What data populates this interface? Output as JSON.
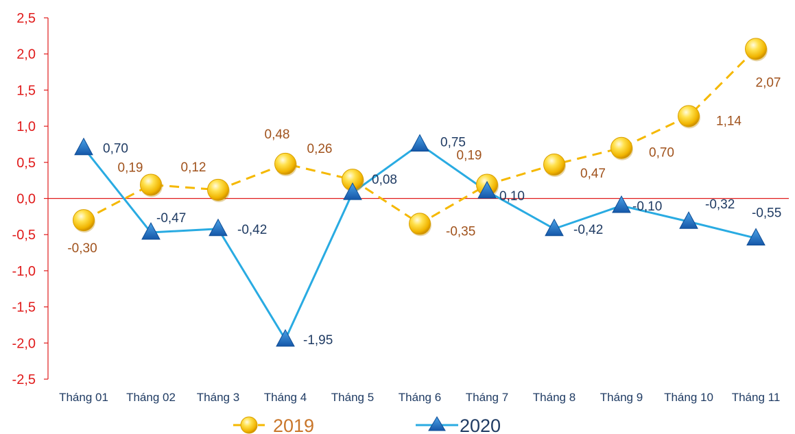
{
  "chart_data": {
    "type": "line",
    "title": "",
    "xlabel": "",
    "ylabel": "",
    "categories": [
      "Tháng 01",
      "Tháng 02",
      "Tháng 3",
      "Tháng 4",
      "Tháng 5",
      "Tháng 6",
      "Tháng 7",
      "Tháng 8",
      "Tháng 9",
      "Tháng 10",
      "Tháng 11"
    ],
    "ylim": [
      -2.5,
      2.5
    ],
    "yticks": [
      "2,5",
      "2,0",
      "1,5",
      "1,0",
      "0,5",
      "0,0",
      "-0,5",
      "-1,0",
      "-1,5",
      "-2,0",
      "-2,5"
    ],
    "grid": false,
    "legend_position": "bottom",
    "series": [
      {
        "name": "2019",
        "values": [
          -0.3,
          0.19,
          0.12,
          0.48,
          0.26,
          -0.35,
          0.19,
          0.47,
          0.7,
          1.14,
          2.07
        ],
        "labels": [
          "-0,30",
          "0,19",
          "0,12",
          "0,48",
          "0,26",
          "-0,35",
          "0,19",
          "0,47",
          "0,70",
          "1,14",
          "2,07"
        ],
        "color": "#f5b800",
        "line_style": "dashed",
        "marker": "circle"
      },
      {
        "name": "2020",
        "values": [
          0.7,
          -0.47,
          -0.42,
          -1.95,
          0.08,
          0.75,
          0.1,
          -0.42,
          -0.1,
          -0.32,
          -0.55
        ],
        "labels": [
          "0,70",
          "-0,47",
          "-0,42",
          "-1,95",
          "0,08",
          "0,75",
          "0,10",
          "-0,42",
          "-0,10",
          "-0,32",
          "-0,55"
        ],
        "color": "#29abe2",
        "line_style": "solid",
        "marker": "triangle"
      }
    ],
    "colors": {
      "y_axis_tick": "#e01b1b",
      "zero_line": "#e01b1b",
      "x_axis_tick": "#1f3b63",
      "label_2019": "#a0521c",
      "label_2020": "#1f3b63",
      "triangle_fill": "#1e6fc0"
    }
  }
}
